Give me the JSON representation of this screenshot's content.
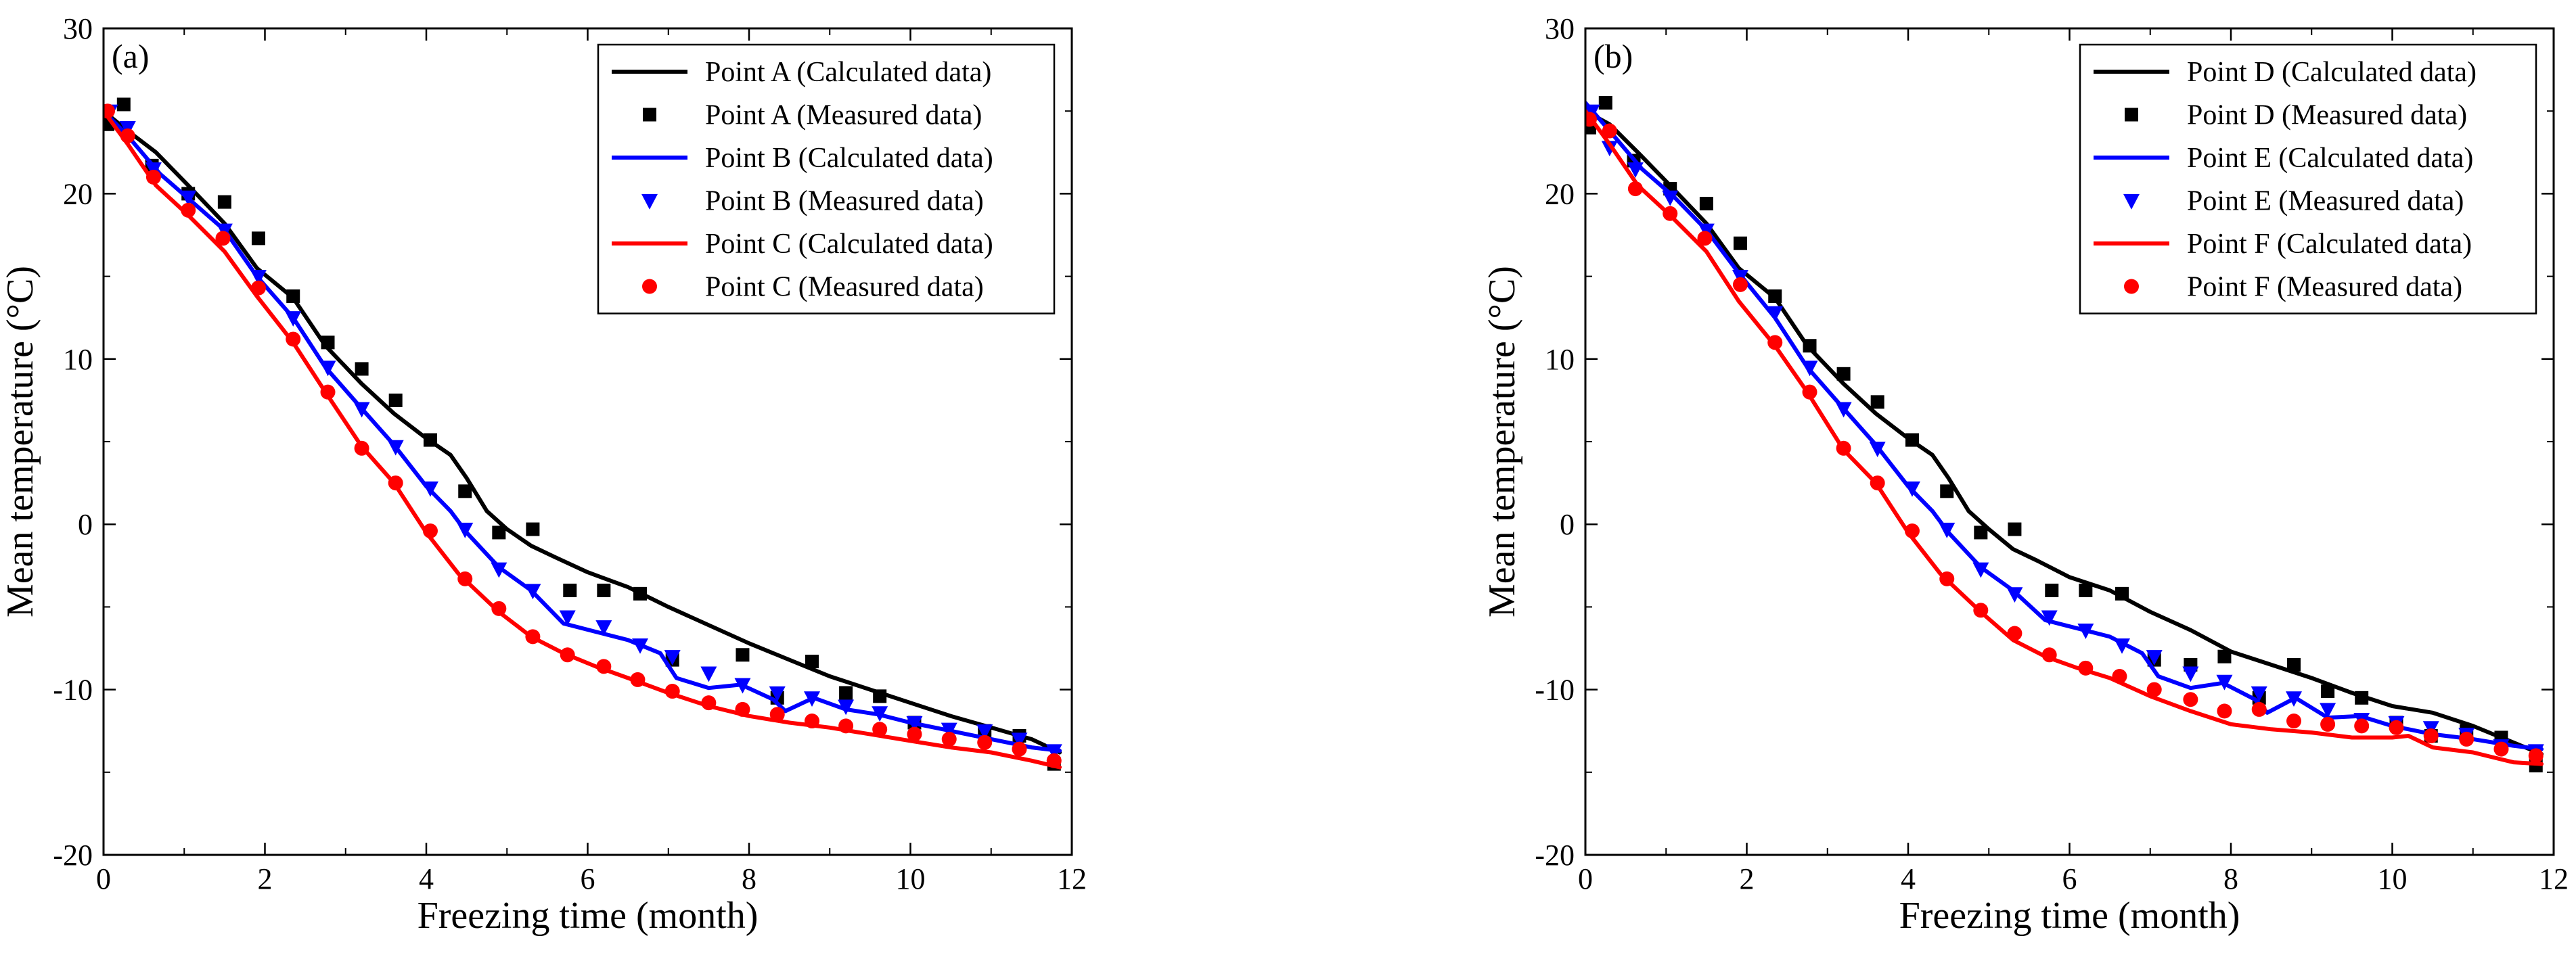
{
  "chart_data": [
    {
      "type": "line",
      "panel_label": "(a)",
      "xlabel": "Freezing time (month)",
      "ylabel": "Mean temperature (°C)",
      "xlim": [
        0,
        12
      ],
      "ylim": [
        -20,
        30
      ],
      "xticks": [
        0,
        2,
        4,
        6,
        8,
        10,
        12
      ],
      "yticks": [
        -20,
        -10,
        0,
        10,
        20,
        30
      ],
      "legend_position": "top-right",
      "series": [
        {
          "name": "Point A (Calculated data)",
          "kind": "line",
          "color": "#000000",
          "x": [
            0,
            0.3,
            0.65,
            1.05,
            1.5,
            1.9,
            2.35,
            2.75,
            3.2,
            3.6,
            4.0,
            4.3,
            4.5,
            4.75,
            5.0,
            5.3,
            5.6,
            6.0,
            6.5,
            7.0,
            7.5,
            8.0,
            8.5,
            9.0,
            9.5,
            10.0,
            10.5,
            11.0,
            11.5,
            11.85
          ],
          "y": [
            25,
            23.8,
            22.5,
            20.5,
            18.2,
            15.5,
            13.7,
            10.8,
            8.5,
            6.7,
            5.2,
            4.2,
            2.8,
            0.8,
            -0.3,
            -1.3,
            -2.0,
            -2.9,
            -3.8,
            -5.0,
            -6.1,
            -7.2,
            -8.2,
            -9.2,
            -10.0,
            -10.8,
            -11.6,
            -12.3,
            -13.0,
            -13.8
          ]
        },
        {
          "name": "Point A (Measured data)",
          "kind": "square",
          "color": "#000000",
          "x": [
            0.05,
            0.25,
            0.6,
            1.05,
            1.5,
            1.92,
            2.35,
            2.78,
            3.2,
            3.62,
            4.05,
            4.48,
            4.9,
            5.32,
            5.78,
            6.2,
            6.65,
            7.05,
            7.92,
            8.35,
            8.78,
            9.2,
            9.62,
            10.05,
            10.92,
            11.35,
            11.78
          ],
          "y": [
            24.2,
            25.4,
            21.7,
            20.0,
            19.5,
            17.3,
            13.8,
            11.0,
            9.4,
            7.5,
            5.1,
            2.0,
            -0.5,
            -0.3,
            -4.0,
            -4.0,
            -4.2,
            -8.2,
            -7.9,
            -10.5,
            -8.3,
            -10.2,
            -10.4,
            -12.0,
            -12.5,
            -12.8,
            -14.5
          ]
        },
        {
          "name": "Point B (Calculated data)",
          "kind": "line",
          "color": "#0000ff",
          "x": [
            0,
            0.3,
            0.7,
            1.1,
            1.5,
            1.9,
            2.35,
            2.75,
            3.2,
            3.6,
            4.0,
            4.3,
            4.5,
            4.9,
            5.3,
            5.7,
            6.1,
            6.5,
            6.9,
            7.1,
            7.5,
            7.9,
            8.3,
            8.45,
            8.8,
            9.2,
            9.6,
            10.0,
            10.5,
            11.0,
            11.5,
            11.85
          ],
          "y": [
            25,
            23.5,
            21.2,
            19.5,
            17.8,
            15.0,
            12.5,
            9.5,
            7.0,
            4.8,
            2.3,
            0.8,
            -0.5,
            -2.6,
            -4.0,
            -6.0,
            -6.5,
            -7.0,
            -7.8,
            -9.3,
            -9.9,
            -9.7,
            -10.6,
            -11.3,
            -10.5,
            -11.2,
            -11.5,
            -12.0,
            -12.5,
            -13.0,
            -13.5,
            -13.7
          ]
        },
        {
          "name": "Point B (Measured data)",
          "kind": "triangle",
          "color": "#0000ff",
          "x": [
            0.08,
            0.3,
            0.62,
            1.05,
            1.5,
            1.92,
            2.35,
            2.78,
            3.2,
            3.62,
            4.05,
            4.48,
            4.9,
            5.32,
            5.75,
            6.2,
            6.65,
            7.05,
            7.5,
            7.92,
            8.35,
            8.78,
            9.2,
            9.62,
            10.05,
            10.48,
            10.92,
            11.35,
            11.78
          ],
          "y": [
            25.0,
            24.0,
            21.5,
            19.8,
            17.8,
            15.0,
            12.5,
            9.5,
            7.0,
            4.7,
            2.2,
            -0.3,
            -2.7,
            -4.0,
            -5.6,
            -6.2,
            -7.3,
            -8.0,
            -9.0,
            -9.7,
            -10.2,
            -10.5,
            -11.0,
            -11.4,
            -12.0,
            -12.4,
            -12.5,
            -13.0,
            -13.7
          ]
        },
        {
          "name": "Point C (Calculated data)",
          "kind": "line",
          "color": "#ff0000",
          "x": [
            0,
            0.3,
            0.65,
            1.05,
            1.5,
            1.9,
            2.35,
            2.75,
            3.2,
            3.6,
            4.0,
            4.4,
            4.9,
            5.3,
            5.7,
            6.1,
            6.5,
            7.0,
            7.5,
            8.0,
            8.5,
            9.0,
            9.5,
            10.0,
            10.5,
            11.0,
            11.5,
            11.85
          ],
          "y": [
            25,
            23.0,
            20.5,
            18.7,
            16.5,
            13.8,
            11.0,
            8.0,
            4.7,
            2.5,
            -0.5,
            -3.0,
            -5.3,
            -6.8,
            -7.8,
            -8.6,
            -9.3,
            -10.2,
            -11.0,
            -11.6,
            -12.0,
            -12.3,
            -12.7,
            -13.1,
            -13.5,
            -13.8,
            -14.3,
            -14.7
          ]
        },
        {
          "name": "Point C (Measured data)",
          "kind": "circle",
          "color": "#ff0000",
          "x": [
            0.05,
            0.3,
            0.62,
            1.05,
            1.48,
            1.92,
            2.35,
            2.78,
            3.2,
            3.62,
            4.05,
            4.48,
            4.9,
            5.32,
            5.75,
            6.2,
            6.62,
            7.05,
            7.5,
            7.92,
            8.35,
            8.78,
            9.2,
            9.62,
            10.05,
            10.48,
            10.92,
            11.35,
            11.78
          ],
          "y": [
            25.0,
            23.5,
            21.0,
            19.0,
            17.3,
            14.3,
            11.2,
            8.0,
            4.6,
            2.5,
            -0.4,
            -3.3,
            -5.1,
            -6.8,
            -7.9,
            -8.6,
            -9.4,
            -10.1,
            -10.8,
            -11.2,
            -11.5,
            -11.9,
            -12.2,
            -12.4,
            -12.7,
            -13.0,
            -13.2,
            -13.6,
            -14.3
          ]
        }
      ]
    },
    {
      "type": "line",
      "panel_label": "(b)",
      "xlabel": "Freezing time (month)",
      "ylabel": "Mean temperature (°C)",
      "xlim": [
        0,
        12
      ],
      "ylim": [
        -20,
        30
      ],
      "xticks": [
        0,
        2,
        4,
        6,
        8,
        10,
        12
      ],
      "yticks": [
        -20,
        -10,
        0,
        10,
        20,
        30
      ],
      "legend_position": "top-right",
      "series": [
        {
          "name": "Point D (Calculated data)",
          "kind": "line",
          "color": "#000000",
          "x": [
            0,
            0.3,
            0.65,
            1.05,
            1.5,
            1.9,
            2.35,
            2.75,
            3.2,
            3.6,
            4.0,
            4.3,
            4.5,
            4.75,
            5.0,
            5.3,
            5.6,
            6.0,
            6.5,
            7.0,
            7.5,
            8.0,
            8.5,
            9.0,
            9.5,
            10.0,
            10.5,
            11.0,
            11.5,
            11.85
          ],
          "y": [
            25,
            24.2,
            22.5,
            20.5,
            18.2,
            15.5,
            13.7,
            10.8,
            8.5,
            6.7,
            5.2,
            4.2,
            2.8,
            0.8,
            -0.3,
            -1.5,
            -2.2,
            -3.2,
            -4.0,
            -5.3,
            -6.4,
            -7.7,
            -8.5,
            -9.3,
            -10.2,
            -11.0,
            -11.4,
            -12.2,
            -13.2,
            -13.9
          ]
        },
        {
          "name": "Point D (Measured data)",
          "kind": "square",
          "color": "#000000",
          "x": [
            0.05,
            0.25,
            0.6,
            1.05,
            1.5,
            1.92,
            2.35,
            2.78,
            3.2,
            3.62,
            4.05,
            4.48,
            4.9,
            5.32,
            5.78,
            6.2,
            6.65,
            7.05,
            7.5,
            7.92,
            8.35,
            8.78,
            9.2,
            9.62,
            10.05,
            10.48,
            10.92,
            11.35,
            11.78
          ],
          "y": [
            24.0,
            25.5,
            22.0,
            20.3,
            19.4,
            17.0,
            13.8,
            10.8,
            9.1,
            7.4,
            5.1,
            2.0,
            -0.5,
            -0.3,
            -4.0,
            -4.0,
            -4.2,
            -8.2,
            -8.5,
            -8.0,
            -10.5,
            -8.5,
            -10.1,
            -10.5,
            -12.0,
            -12.8,
            -12.5,
            -12.9,
            -14.6
          ]
        },
        {
          "name": "Point E (Calculated data)",
          "kind": "line",
          "color": "#0000ff",
          "x": [
            0,
            0.3,
            0.7,
            1.1,
            1.5,
            1.9,
            2.35,
            2.75,
            3.2,
            3.6,
            4.0,
            4.3,
            4.5,
            4.9,
            5.3,
            5.7,
            6.1,
            6.5,
            6.9,
            7.1,
            7.5,
            7.9,
            8.3,
            8.45,
            8.8,
            9.2,
            9.6,
            10.0,
            10.5,
            11.0,
            11.5,
            11.85
          ],
          "y": [
            25.5,
            23.8,
            21.5,
            19.8,
            17.8,
            15.2,
            12.5,
            9.5,
            7.0,
            4.8,
            2.3,
            0.8,
            -0.5,
            -2.6,
            -4.0,
            -5.8,
            -6.3,
            -6.8,
            -7.8,
            -9.2,
            -9.9,
            -9.6,
            -10.6,
            -11.4,
            -10.5,
            -11.7,
            -11.6,
            -12.2,
            -12.7,
            -13.0,
            -13.4,
            -13.6
          ]
        },
        {
          "name": "Point E (Measured data)",
          "kind": "triangle",
          "color": "#0000ff",
          "x": [
            0.08,
            0.3,
            0.62,
            1.05,
            1.5,
            1.92,
            2.35,
            2.78,
            3.2,
            3.62,
            4.05,
            4.48,
            4.9,
            5.32,
            5.75,
            6.2,
            6.65,
            7.05,
            7.5,
            7.92,
            8.35,
            8.78,
            9.2,
            9.62,
            10.05,
            10.48,
            10.92,
            11.35,
            11.78
          ],
          "y": [
            25.0,
            22.8,
            21.5,
            19.8,
            17.8,
            15.0,
            12.8,
            9.5,
            7.0,
            4.6,
            2.2,
            -0.3,
            -2.7,
            -4.2,
            -5.6,
            -6.4,
            -7.3,
            -8.0,
            -9.0,
            -9.5,
            -10.2,
            -10.5,
            -11.2,
            -11.8,
            -12.0,
            -12.3,
            -12.7,
            -13.4,
            -13.7
          ]
        },
        {
          "name": "Point F (Calculated data)",
          "kind": "line",
          "color": "#ff0000",
          "x": [
            0,
            0.3,
            0.65,
            1.05,
            1.5,
            1.9,
            2.35,
            2.75,
            3.2,
            3.6,
            4.0,
            4.4,
            4.9,
            5.3,
            5.7,
            6.1,
            6.5,
            7.0,
            7.5,
            8.0,
            8.5,
            9.0,
            9.5,
            10.0,
            10.2,
            10.5,
            11.0,
            11.5,
            11.85
          ],
          "y": [
            25,
            23.0,
            20.5,
            18.7,
            16.5,
            13.5,
            10.8,
            8.0,
            4.5,
            2.5,
            -0.5,
            -3.0,
            -5.3,
            -7.0,
            -8.0,
            -8.7,
            -9.3,
            -10.4,
            -11.3,
            -12.1,
            -12.4,
            -12.6,
            -12.9,
            -12.9,
            -12.8,
            -13.5,
            -13.8,
            -14.4,
            -14.5
          ]
        },
        {
          "name": "Point F (Measured data)",
          "kind": "circle",
          "color": "#ff0000",
          "x": [
            0.05,
            0.3,
            0.62,
            1.05,
            1.48,
            1.92,
            2.35,
            2.78,
            3.2,
            3.62,
            4.05,
            4.48,
            4.9,
            5.32,
            5.75,
            6.2,
            6.62,
            7.05,
            7.5,
            7.92,
            8.35,
            8.78,
            9.2,
            9.62,
            10.05,
            10.48,
            10.92,
            11.35,
            11.78
          ],
          "y": [
            24.5,
            23.8,
            20.3,
            18.8,
            17.3,
            14.5,
            11.0,
            8.0,
            4.6,
            2.5,
            -0.4,
            -3.3,
            -5.2,
            -6.6,
            -7.9,
            -8.7,
            -9.2,
            -10.0,
            -10.6,
            -11.3,
            -11.2,
            -11.9,
            -12.1,
            -12.2,
            -12.3,
            -12.8,
            -13.0,
            -13.6,
            -14.0
          ]
        }
      ]
    }
  ]
}
